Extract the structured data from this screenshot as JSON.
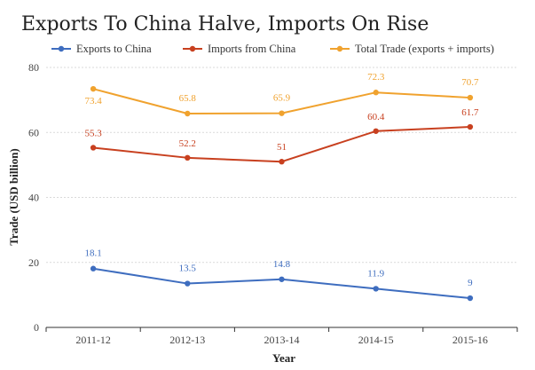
{
  "chart_data": {
    "type": "line",
    "title": "Exports To China Halve, Imports On Rise",
    "xlabel": "Year",
    "ylabel": "Trade (USD billion)",
    "ylim": [
      0,
      80
    ],
    "yticks": [
      "0",
      "20",
      "40",
      "60",
      "80"
    ],
    "categories": [
      "2011-12",
      "2012-13",
      "2013-14",
      "2014-15",
      "2015-16"
    ],
    "legend_position": "top",
    "grid": "horizontal dashed",
    "series": [
      {
        "name": "Exports to China",
        "color": "#3e6dbf",
        "values": [
          18.1,
          13.5,
          14.8,
          11.9,
          9
        ],
        "labels": [
          "18.1",
          "13.5",
          "14.8",
          "11.9",
          "9"
        ]
      },
      {
        "name": "Imports from China",
        "color": "#c8401f",
        "values": [
          55.3,
          52.2,
          51,
          60.4,
          61.7
        ],
        "labels": [
          "55.3",
          "52.2",
          "51",
          "60.4",
          "61.7"
        ]
      },
      {
        "name": "Total Trade (exports + imports)",
        "color": "#f0a22e",
        "values": [
          73.4,
          65.8,
          65.9,
          72.3,
          70.7
        ],
        "labels": [
          "73.4",
          "65.8",
          "65.9",
          "72.3",
          "70.7"
        ]
      }
    ]
  }
}
